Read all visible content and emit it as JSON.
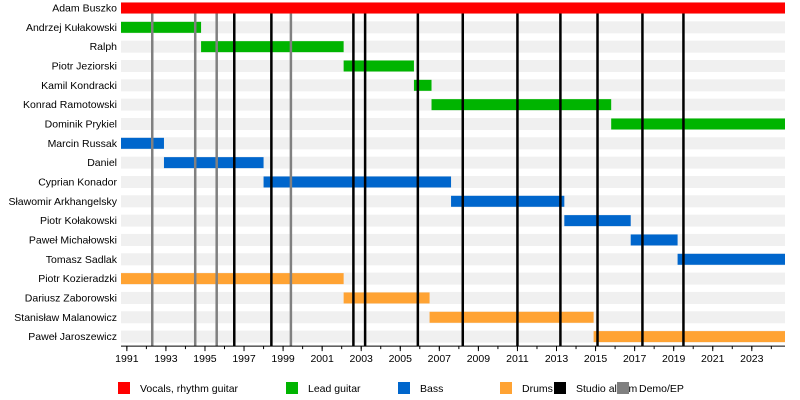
{
  "chart_data": {
    "type": "timeline",
    "x_range": [
      1990.7,
      2024.7
    ],
    "x_ticks": [
      "1991",
      "1993",
      "1995",
      "1997",
      "1999",
      "2001",
      "2003",
      "2005",
      "2007",
      "2009",
      "2011",
      "2013",
      "2015",
      "2017",
      "2019",
      "2021",
      "2023"
    ],
    "members": [
      "Adam Buszko",
      "Andrzej Kułakowski",
      "Ralph",
      "Piotr Jeziorski",
      "Kamil Kondracki",
      "Konrad Ramotowski",
      "Dominik Prykiel",
      "Marcin Russak",
      "Daniel",
      "Cyprian Konador",
      "Sławomir Arkhangelsky",
      "Piotr Kołakowski",
      "Paweł Michałowski",
      "Tomasz Sadlak",
      "Piotr Kozieradzki",
      "Dariusz Zaborowski",
      "Stanisław Malanowicz",
      "Paweł Jaroszewicz"
    ],
    "bars": [
      {
        "row": 0,
        "role": "Vocals, rhythm guitar",
        "start": 1990.7,
        "end": 2024.7
      },
      {
        "row": 1,
        "role": "Lead guitar",
        "start": 1990.7,
        "end": 1994.8
      },
      {
        "row": 2,
        "role": "Lead guitar",
        "start": 1994.8,
        "end": 2002.1
      },
      {
        "row": 3,
        "role": "Lead guitar",
        "start": 2002.1,
        "end": 2005.7
      },
      {
        "row": 4,
        "role": "Lead guitar",
        "start": 2005.7,
        "end": 2006.6
      },
      {
        "row": 5,
        "role": "Lead guitar",
        "start": 2006.6,
        "end": 2015.8
      },
      {
        "row": 6,
        "role": "Lead guitar",
        "start": 2015.8,
        "end": 2024.7
      },
      {
        "row": 7,
        "role": "Bass",
        "start": 1990.7,
        "end": 1992.9
      },
      {
        "row": 8,
        "role": "Bass",
        "start": 1992.9,
        "end": 1998.0
      },
      {
        "row": 9,
        "role": "Bass",
        "start": 1998.0,
        "end": 2007.6
      },
      {
        "row": 10,
        "role": "Bass",
        "start": 2007.6,
        "end": 2013.4
      },
      {
        "row": 11,
        "role": "Bass",
        "start": 2013.4,
        "end": 2016.8
      },
      {
        "row": 12,
        "role": "Bass",
        "start": 2016.8,
        "end": 2019.2
      },
      {
        "row": 13,
        "role": "Bass",
        "start": 2019.2,
        "end": 2024.7
      },
      {
        "row": 14,
        "role": "Drums",
        "start": 1990.7,
        "end": 2002.1
      },
      {
        "row": 15,
        "role": "Drums",
        "start": 2002.1,
        "end": 2006.5
      },
      {
        "row": 16,
        "role": "Drums",
        "start": 2006.5,
        "end": 2014.9
      },
      {
        "row": 17,
        "role": "Drums",
        "start": 2014.9,
        "end": 2024.7
      }
    ],
    "studio_albums": [
      1996.5,
      1998.4,
      2002.6,
      2003.2,
      2005.9,
      2008.2,
      2011.0,
      2013.2,
      2015.1,
      2017.4,
      2019.5
    ],
    "demo_ep": [
      1992.3,
      1994.5,
      1995.6,
      1999.4
    ],
    "legend": [
      {
        "label": "Vocals, rhythm guitar",
        "color": "#ff0000"
      },
      {
        "label": "Lead guitar",
        "color": "#00b400"
      },
      {
        "label": "Bass",
        "color": "#0066cc"
      },
      {
        "label": "Drums",
        "color": "#ffa333"
      },
      {
        "label": "Studio album",
        "color": "#000000"
      },
      {
        "label": "Demo/EP",
        "color": "#808080"
      }
    ],
    "grid": false
  }
}
